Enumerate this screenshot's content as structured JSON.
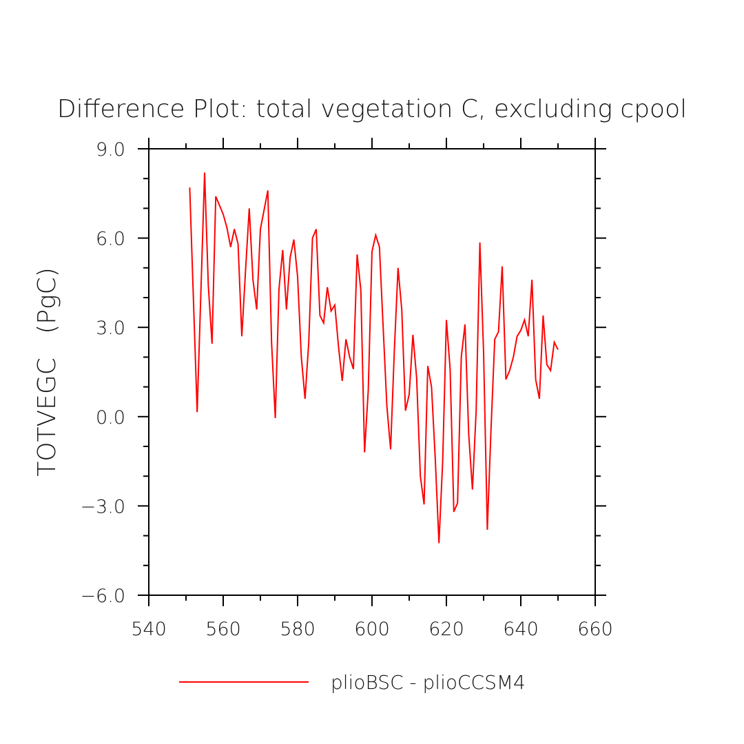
{
  "chart_data": {
    "type": "line",
    "title": "Difference Plot: total vegetation C, excluding cpool",
    "xlabel": "",
    "ylabel": "TOTVEGC   (PgC)",
    "xlim": [
      540,
      660
    ],
    "ylim": [
      -6.0,
      9.0
    ],
    "x_ticks": [
      "540",
      "560",
      "580",
      "600",
      "620",
      "640",
      "660"
    ],
    "y_ticks": [
      "-6.0",
      "-3.0",
      "0.0",
      "3.0",
      "6.0",
      "9.0"
    ],
    "grid": false,
    "legend_position": "bottom-center",
    "colors": {
      "series": "#ff0000",
      "axes": "#000000"
    },
    "series": [
      {
        "name": "plioBSC - plioCCSM4",
        "x": [
          551,
          553,
          555,
          556,
          557,
          558,
          559,
          560,
          561,
          562,
          563,
          564,
          565,
          566,
          567,
          568,
          569,
          570,
          571,
          572,
          573,
          574,
          575,
          576,
          577,
          578,
          579,
          580,
          581,
          582,
          583,
          584,
          585,
          586,
          587,
          588,
          589,
          590,
          591,
          592,
          593,
          594,
          595,
          596,
          597,
          598,
          599,
          600,
          601,
          602,
          603,
          604,
          605,
          606,
          607,
          608,
          609,
          610,
          611,
          612,
          613,
          614,
          615,
          616,
          617,
          618,
          619,
          620,
          621,
          622,
          623,
          624,
          625,
          626,
          627,
          628,
          629,
          630,
          631,
          632,
          633,
          634,
          635,
          636,
          637,
          638,
          639,
          640,
          641,
          642,
          643,
          644,
          645,
          646,
          647,
          648,
          649,
          650
        ],
        "y": [
          7.7,
          0.15,
          8.2,
          4.4,
          2.45,
          7.4,
          7.1,
          6.8,
          6.35,
          5.7,
          6.3,
          5.8,
          2.7,
          4.9,
          7.0,
          4.6,
          3.6,
          6.3,
          6.95,
          7.6,
          2.5,
          -0.05,
          4.3,
          5.6,
          3.6,
          5.35,
          5.95,
          4.7,
          2.0,
          0.6,
          2.5,
          6.0,
          6.3,
          3.4,
          3.15,
          4.35,
          3.55,
          3.75,
          2.35,
          1.2,
          2.6,
          2.0,
          1.6,
          5.45,
          4.25,
          -1.2,
          0.9,
          5.55,
          6.1,
          5.7,
          3.0,
          0.35,
          -1.1,
          2.2,
          5.0,
          3.6,
          0.2,
          0.75,
          2.75,
          1.3,
          -2.0,
          -2.95,
          1.7,
          1.0,
          -1.4,
          -4.25,
          -1.5,
          3.25,
          1.6,
          -3.2,
          -2.9,
          2.0,
          3.1,
          -0.6,
          -2.45,
          0.2,
          5.85,
          2.15,
          -3.8,
          -0.4,
          2.6,
          2.85,
          5.05,
          1.25,
          1.55,
          2.0,
          2.7,
          2.9,
          3.25,
          2.7,
          4.6,
          1.25,
          0.6,
          3.4,
          1.75,
          1.55,
          2.5,
          2.25
        ]
      }
    ]
  }
}
